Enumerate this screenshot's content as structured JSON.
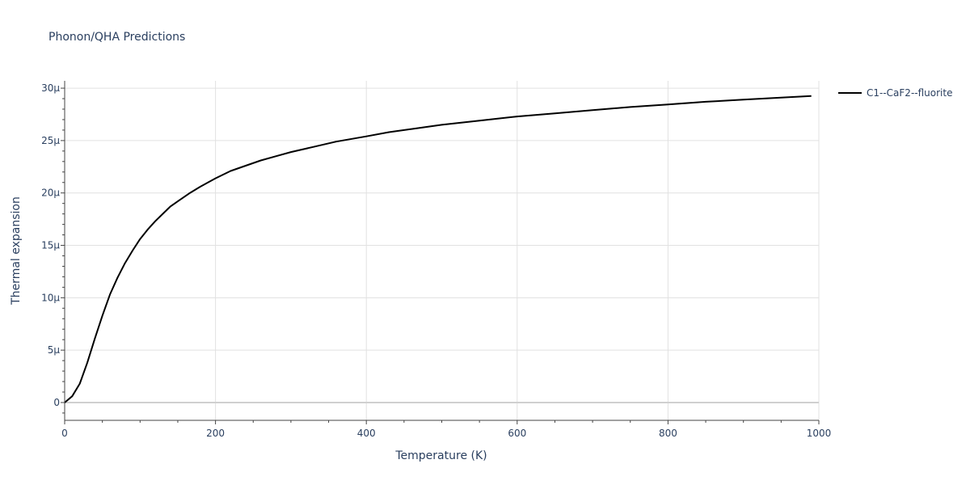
{
  "chart_data": {
    "type": "line",
    "title": "Phonon/QHA Predictions",
    "xlabel": "Temperature (K)",
    "ylabel": "Thermal expansion",
    "xlim": [
      0,
      1000
    ],
    "ylim": [
      -1.7e-06,
      3.07e-05
    ],
    "grid": true,
    "legend_position": "top-right",
    "x_ticks": [
      {
        "value": 0,
        "label": "0"
      },
      {
        "value": 200,
        "label": "200"
      },
      {
        "value": 400,
        "label": "400"
      },
      {
        "value": 600,
        "label": "600"
      },
      {
        "value": 800,
        "label": "800"
      },
      {
        "value": 1000,
        "label": "1000"
      }
    ],
    "y_ticks": [
      {
        "value": 0,
        "label": "0"
      },
      {
        "value": 5e-06,
        "label": "5μ"
      },
      {
        "value": 1e-05,
        "label": "10μ"
      },
      {
        "value": 1.5e-05,
        "label": "15μ"
      },
      {
        "value": 2e-05,
        "label": "20μ"
      },
      {
        "value": 2.5e-05,
        "label": "25μ"
      },
      {
        "value": 3e-05,
        "label": "30μ"
      }
    ],
    "series": [
      {
        "name": "C1--CaF2--fluorite",
        "color": "#000000",
        "x": [
          0,
          10,
          20,
          30,
          40,
          50,
          60,
          70,
          80,
          90,
          100,
          110,
          120,
          130,
          140,
          150,
          165,
          180,
          200,
          220,
          240,
          260,
          280,
          300,
          330,
          360,
          400,
          430,
          460,
          500,
          550,
          600,
          650,
          700,
          750,
          800,
          850,
          900,
          950,
          990
        ],
        "y": [
          0,
          6e-07,
          1.8e-06,
          3.8e-06,
          6.1e-06,
          8.3e-06,
          1.03e-05,
          1.19e-05,
          1.33e-05,
          1.45e-05,
          1.56e-05,
          1.65e-05,
          1.73e-05,
          1.8e-05,
          1.87e-05,
          1.92e-05,
          1.995e-05,
          2.06e-05,
          2.14e-05,
          2.21e-05,
          2.26e-05,
          2.31e-05,
          2.35e-05,
          2.39e-05,
          2.44e-05,
          2.49e-05,
          2.54e-05,
          2.58e-05,
          2.61e-05,
          2.65e-05,
          2.69e-05,
          2.73e-05,
          2.76e-05,
          2.79e-05,
          2.82e-05,
          2.845e-05,
          2.87e-05,
          2.89e-05,
          2.91e-05,
          2.925e-05
        ]
      }
    ]
  }
}
